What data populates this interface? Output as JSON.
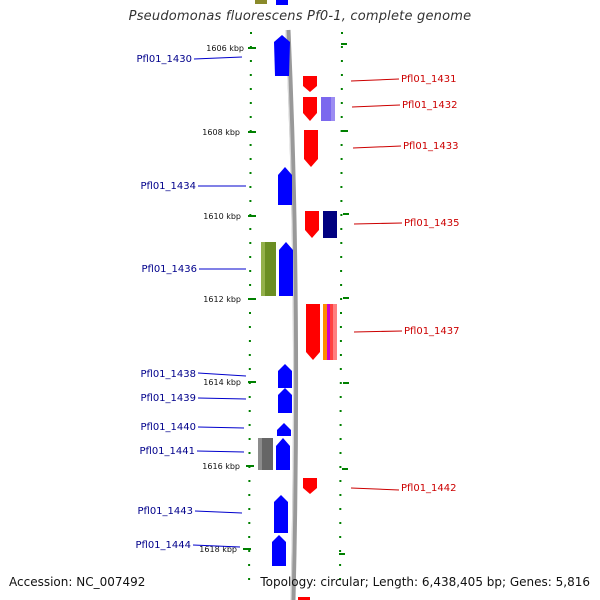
{
  "title": "Pseudomonas fluorescens Pf0-1, complete genome",
  "footer": {
    "accession": "Accession: NC_007492",
    "summary": "Topology: circular; Length: 6,438,405 bp; Genes: 5,816"
  },
  "colors": {
    "backbone": "#999999",
    "forward": "#0000ff",
    "reverse": "#ff0000",
    "left_label": "#00008b",
    "right_label": "#cc0000",
    "tick": "#008000"
  },
  "ticks": [
    {
      "label": "1606 kbp",
      "kbp": 1606
    },
    {
      "label": "1608 kbp",
      "kbp": 1608
    },
    {
      "label": "1610 kbp",
      "kbp": 1610
    },
    {
      "label": "1612 kbp",
      "kbp": 1612
    },
    {
      "label": "1614 kbp",
      "kbp": 1614
    },
    {
      "label": "1616 kbp",
      "kbp": 1616
    },
    {
      "label": "1618 kbp",
      "kbp": 1618
    }
  ],
  "genes_left": [
    {
      "label": "Pfl01_1430"
    },
    {
      "label": "Pfl01_1434"
    },
    {
      "label": "Pfl01_1436"
    },
    {
      "label": "Pfl01_1438"
    },
    {
      "label": "Pfl01_1439"
    },
    {
      "label": "Pfl01_1440"
    },
    {
      "label": "Pfl01_1441"
    },
    {
      "label": "Pfl01_1443"
    },
    {
      "label": "Pfl01_1444"
    }
  ],
  "genes_right": [
    {
      "label": "Pfl01_1431"
    },
    {
      "label": "Pfl01_1432"
    },
    {
      "label": "Pfl01_1433"
    },
    {
      "label": "Pfl01_1435"
    },
    {
      "label": "Pfl01_1437"
    },
    {
      "label": "Pfl01_1442"
    }
  ]
}
